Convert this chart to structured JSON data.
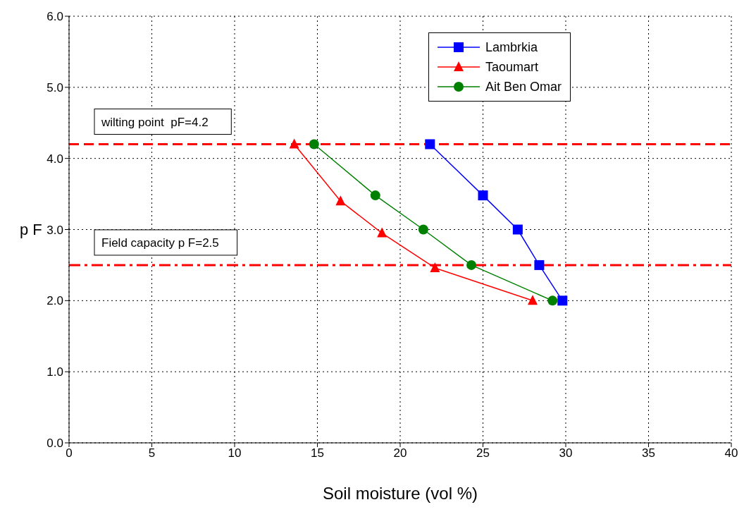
{
  "chart_data": {
    "type": "line",
    "xlabel": "Soil moisture (vol %)",
    "ylabel": "p F",
    "xlim": [
      0,
      40
    ],
    "xticks": [
      0,
      5,
      10,
      15,
      20,
      25,
      30,
      35,
      40
    ],
    "ylim": [
      0,
      6
    ],
    "yticks": [
      {
        "value": 0,
        "label": "0.0"
      },
      {
        "value": 1,
        "label": "1.0"
      },
      {
        "value": 2,
        "label": "2.0"
      },
      {
        "value": 3,
        "label": "3.0"
      },
      {
        "value": 4,
        "label": "4.0"
      },
      {
        "value": 5,
        "label": "5.0"
      },
      {
        "value": 6,
        "label": "6.0"
      }
    ],
    "grid": true,
    "legend": "top right",
    "line_style": "solid",
    "series": [
      {
        "name": "Lambrkia",
        "color": "#0000ff",
        "marker": "square",
        "x": [
          21.8,
          25.0,
          27.1,
          28.4,
          29.8
        ],
        "values": [
          4.2,
          3.48,
          3.0,
          2.5,
          2.0
        ]
      },
      {
        "name": "Taoumart",
        "color": "#ff0000",
        "marker": "triangle",
        "x": [
          13.6,
          16.4,
          18.9,
          22.1,
          28.0
        ],
        "values": [
          4.2,
          3.4,
          2.95,
          2.46,
          2.0
        ]
      },
      {
        "name": "Ait Ben Omar",
        "color": "#008000",
        "marker": "circle",
        "x": [
          14.8,
          18.5,
          21.4,
          24.3,
          29.2
        ],
        "values": [
          4.2,
          3.48,
          3.0,
          2.5,
          2.0
        ]
      }
    ],
    "ref_lines": [
      {
        "axis": "y",
        "value": 4.2,
        "label": "wilting point  pF=4.2",
        "color": "#ff0000",
        "line_style": "dashed"
      },
      {
        "axis": "y",
        "value": 2.5,
        "label": "Field capacity p F=2.5",
        "color": "#ff0000",
        "line_style": "dashdot"
      }
    ]
  }
}
